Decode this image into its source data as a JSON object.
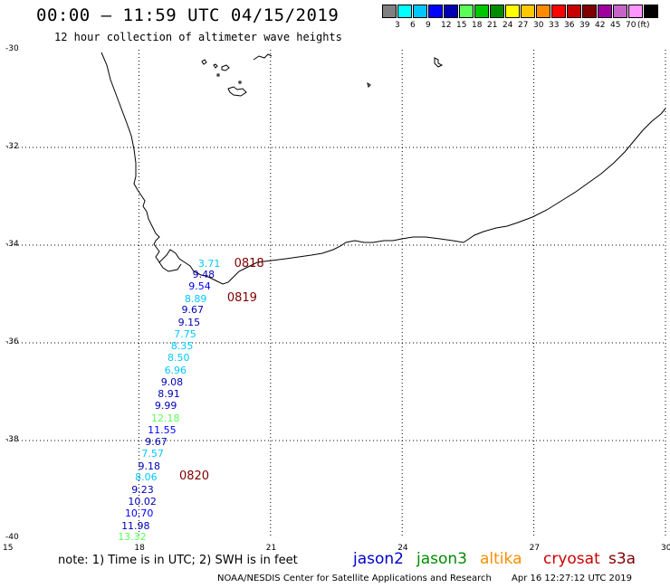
{
  "header": {
    "title": "00:00 — 11:59 UTC 04/15/2019",
    "subtitle": "12 hour collection of altimeter wave heights"
  },
  "colorbar": {
    "colors": [
      "#808080",
      "#00ffff",
      "#00c8ff",
      "#0000ff",
      "#0000b4",
      "#5aff5a",
      "#00c800",
      "#008c00",
      "#ffff00",
      "#ffc800",
      "#ff8c00",
      "#ff0000",
      "#c80000",
      "#800000",
      "#a000a0",
      "#c864c8",
      "#ff96ff",
      "#000000"
    ],
    "ticks": [
      "3",
      "6",
      "9",
      "12",
      "15",
      "18",
      "21",
      "24",
      "27",
      "30",
      "33",
      "36",
      "39",
      "42",
      "45",
      "70"
    ],
    "unit": "(ft)"
  },
  "map": {
    "lat_ticks": [
      "-30",
      "-32",
      "-34",
      "-36",
      "-38",
      "-40"
    ],
    "lon_ticks": [
      "15",
      "18",
      "21",
      "24",
      "27",
      "30"
    ],
    "lon_range": [
      15,
      30
    ],
    "lat_range": [
      -30,
      -40
    ]
  },
  "observations": [
    {
      "value": "3.71",
      "color": "#00c8ff",
      "lon": 19.64,
      "lat": -34.39
    },
    {
      "value": "9.48",
      "color": "#0000b4",
      "lon": 19.51,
      "lat": -34.62
    },
    {
      "value": "9.54",
      "color": "#0000ff",
      "lon": 19.42,
      "lat": -34.86
    },
    {
      "value": "8.89",
      "color": "#00c8ff",
      "lon": 19.33,
      "lat": -35.11
    },
    {
      "value": "9.67",
      "color": "#0000b4",
      "lon": 19.26,
      "lat": -35.34
    },
    {
      "value": "9.15",
      "color": "#0000b4",
      "lon": 19.18,
      "lat": -35.59
    },
    {
      "value": "7.75",
      "color": "#00c8ff",
      "lon": 19.09,
      "lat": -35.84
    },
    {
      "value": "8.35",
      "color": "#00c8ff",
      "lon": 19.02,
      "lat": -36.08
    },
    {
      "value": "8.50",
      "color": "#00c8ff",
      "lon": 18.94,
      "lat": -36.32
    },
    {
      "value": "6.96",
      "color": "#00c8ff",
      "lon": 18.87,
      "lat": -36.57
    },
    {
      "value": "9.08",
      "color": "#0000b4",
      "lon": 18.79,
      "lat": -36.82
    },
    {
      "value": "8.91",
      "color": "#0000b4",
      "lon": 18.72,
      "lat": -37.06
    },
    {
      "value": "9.99",
      "color": "#0000b4",
      "lon": 18.65,
      "lat": -37.3
    },
    {
      "value": "12.18",
      "color": "#5aff5a",
      "lon": 18.57,
      "lat": -37.55
    },
    {
      "value": "11.55",
      "color": "#0000ff",
      "lon": 18.49,
      "lat": -37.79
    },
    {
      "value": "9.67",
      "color": "#0000b4",
      "lon": 18.43,
      "lat": -38.04
    },
    {
      "value": "7.57",
      "color": "#00c8ff",
      "lon": 18.35,
      "lat": -38.28
    },
    {
      "value": "9.18",
      "color": "#0000b4",
      "lon": 18.27,
      "lat": -38.53
    },
    {
      "value": "8.06",
      "color": "#00c8ff",
      "lon": 18.2,
      "lat": -38.76
    },
    {
      "value": "9.23",
      "color": "#0000b4",
      "lon": 18.12,
      "lat": -39.01
    },
    {
      "value": "10.02",
      "color": "#0000b4",
      "lon": 18.04,
      "lat": -39.26
    },
    {
      "value": "10.70",
      "color": "#0000ff",
      "lon": 17.97,
      "lat": -39.5
    },
    {
      "value": "11.98",
      "color": "#0000b4",
      "lon": 17.89,
      "lat": -39.75
    },
    {
      "value": "13.32",
      "color": "#5aff5a",
      "lon": 17.81,
      "lat": -39.99
    }
  ],
  "time_labels": [
    {
      "text": "0818",
      "lon": 20.17,
      "lat": -34.38
    },
    {
      "text": "0819",
      "lon": 20.01,
      "lat": -35.09
    },
    {
      "text": "0820",
      "lon": 18.92,
      "lat": -38.74
    }
  ],
  "footer": {
    "note": "note: 1) Time is in UTC; 2) SWH is in feet",
    "satellites": [
      {
        "name": "jason2",
        "color": "#0000cc"
      },
      {
        "name": "jason3",
        "color": "#008c00"
      },
      {
        "name": "altika",
        "color": "#ff8c00"
      },
      {
        "name": "cryosat",
        "color": "#cc0000"
      },
      {
        "name": "s3a",
        "color": "#800000"
      }
    ],
    "credit": "NOAA/NESDIS Center for Satellite Applications and Research",
    "stamp": "Apr 16 12:27:12 UTC 2019"
  }
}
